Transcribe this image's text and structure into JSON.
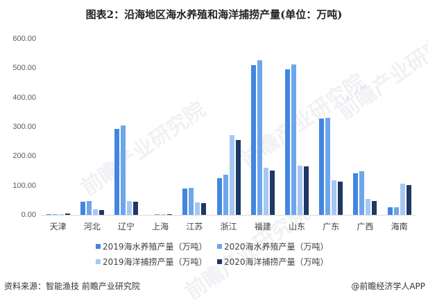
{
  "title": "图表2：沿海地区海水养殖和海洋捕捞产量(单位：万吨)",
  "watermark": "前瞻产业研究院",
  "footer": {
    "source": "资料来源：智能渔技 前瞻产业研究院",
    "credit": "@前瞻经济学人APP"
  },
  "colors": {
    "s2019_aqua": "#4286e0",
    "s2020_aqua": "#6ea6ec",
    "s2019_catch": "#a5c8f3",
    "s2020_catch": "#1f3864"
  },
  "yaxis": {
    "ticks": [
      "600.00",
      "500.00",
      "400.00",
      "300.00",
      "200.00",
      "100.00",
      "0.00"
    ]
  },
  "legend": [
    "2019海水养殖产量（万吨）",
    "2020海水养殖产量（万吨）",
    "2019海洋捕捞产量（万吨）",
    "2020海洋捕捞产量（万吨）"
  ],
  "chart_data": {
    "type": "bar",
    "title": "图表2：沿海地区海水养殖和海洋捕捞产量(单位：万吨)",
    "xlabel": "",
    "ylabel": "",
    "ylim": [
      0,
      600
    ],
    "grid": false,
    "legend_position": "bottom",
    "categories": [
      "天津",
      "河北",
      "辽宁",
      "上海",
      "江苏",
      "浙江",
      "福建",
      "山东",
      "广东",
      "广西",
      "海南"
    ],
    "series": [
      {
        "name": "2019海水养殖产量（万吨）",
        "values": [
          3,
          45,
          293,
          0,
          90,
          125,
          510,
          496,
          328,
          142,
          26
        ]
      },
      {
        "name": "2020海水养殖产量（万吨）",
        "values": [
          3,
          47,
          305,
          2,
          92,
          137,
          527,
          513,
          331,
          149,
          26
        ]
      },
      {
        "name": "2019海洋捕捞产量（万吨）",
        "values": [
          3,
          19,
          47,
          2,
          43,
          272,
          161,
          168,
          118,
          54,
          106
        ]
      },
      {
        "name": "2020海洋捕捞产量（万吨）",
        "values": [
          4,
          17,
          45,
          2,
          40,
          255,
          151,
          165,
          113,
          47,
          101
        ]
      }
    ]
  }
}
